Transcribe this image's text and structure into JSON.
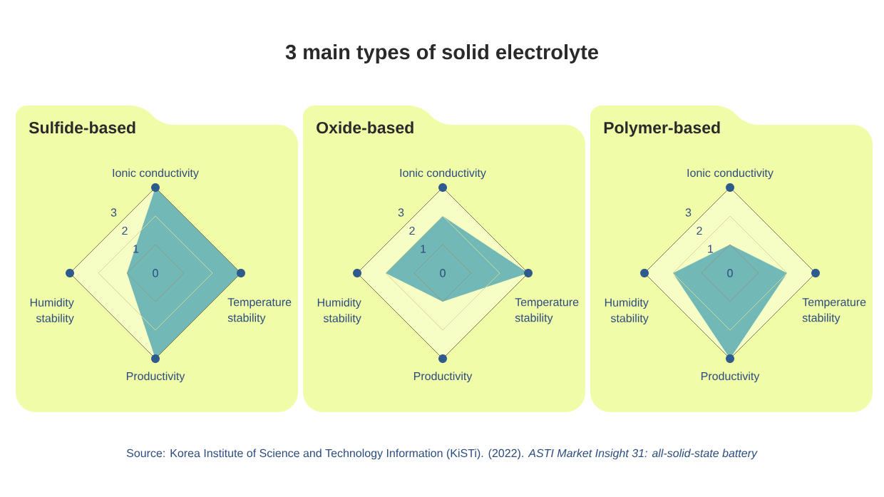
{
  "chart_data": [
    {
      "type": "radar",
      "title": "3 main types of solid electrolyte",
      "subtitle": "Sulfide-based",
      "categories": [
        "Ionic conductivity",
        "Temperature stability",
        "Productivity",
        "Humidity stability"
      ],
      "series": [
        {
          "color": "#72b8b6",
          "values": [
            3,
            3,
            3,
            1
          ]
        }
      ],
      "ylim": [
        0,
        3
      ],
      "yticks": [
        0,
        1,
        2,
        3
      ],
      "grid": true,
      "annotations": [
        "Source: Korea Institute of Science and Technology Information (KiSTi). (2022). *ASTI Market Insight 31: all-solid-state battery*"
      ]
    },
    {
      "type": "radar",
      "subtitle": "Oxide-based",
      "categories": [
        "Ionic conductivity",
        "Temperature stability",
        "Productivity",
        "Humidity stability"
      ],
      "series": [
        {
          "color": "#72b8b6",
          "values": [
            2,
            3,
            1,
            2
          ]
        }
      ],
      "ylim": [
        0,
        3
      ],
      "yticks": [
        0,
        1,
        2,
        3
      ],
      "grid": true
    },
    {
      "type": "radar",
      "subtitle": "Polymer-based",
      "categories": [
        "Ionic conductivity",
        "Temperature stability",
        "Productivity",
        "Humidity stability"
      ],
      "series": [
        {
          "color": "#72b8b6",
          "values": [
            1,
            2,
            3,
            2
          ]
        }
      ],
      "ylim": [
        0,
        3
      ],
      "yticks": [
        0,
        1,
        2,
        3
      ],
      "grid": true
    }
  ]
}
